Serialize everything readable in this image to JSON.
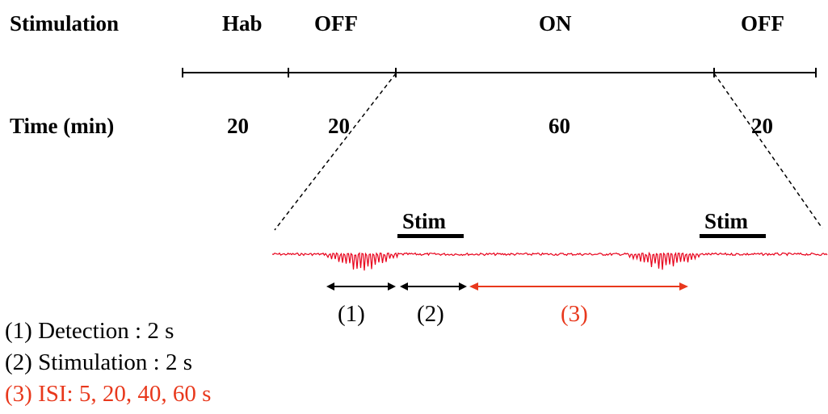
{
  "stimulation_label": "Stimulation",
  "time_label": "Time (min)",
  "phases": [
    {
      "name": "Hab",
      "duration": "20"
    },
    {
      "name": "OFF",
      "duration": "20"
    },
    {
      "name": "ON",
      "duration": "60"
    },
    {
      "name": "OFF",
      "duration": "20"
    }
  ],
  "stim_labels": [
    "Stim",
    "Stim"
  ],
  "interval_markers": [
    "(1)",
    "(2)",
    "(3)"
  ],
  "legend": [
    {
      "text": "(1) Detection : 2 s",
      "color": "#000000"
    },
    {
      "text": "(2) Stimulation : 2 s",
      "color": "#000000"
    },
    {
      "text": "(3) ISI: 5, 20, 40, 60 s",
      "color": "#e8381c"
    }
  ],
  "colors": {
    "trace": "#e8001a",
    "accent": "#e8381c",
    "line": "#000000"
  }
}
